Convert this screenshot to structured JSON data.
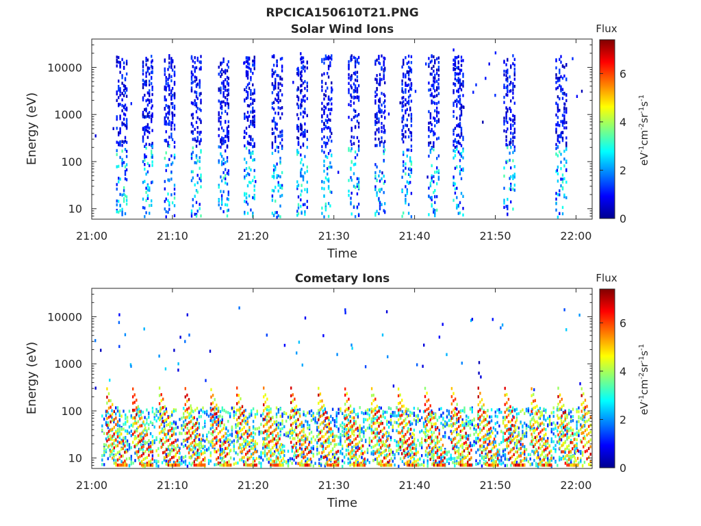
{
  "figure_title": "RPCICA150610T21.PNG",
  "chart_data": [
    {
      "type": "heatmap",
      "title": "Solar Wind Ions",
      "xlabel": "Time",
      "ylabel": "Energy (eV)",
      "x_ticks": [
        "21:00",
        "21:10",
        "21:20",
        "21:30",
        "21:40",
        "21:50",
        "22:00"
      ],
      "x_range_minutes": [
        0,
        62
      ],
      "y_scale": "log",
      "y_ticks": [
        {
          "value": 10,
          "label": "10"
        },
        {
          "value": 100,
          "label": "100"
        },
        {
          "value": 1000,
          "label": "1000"
        },
        {
          "value": 10000,
          "label": "10000"
        }
      ],
      "y_range": [
        6,
        40000
      ],
      "colorbar": {
        "title": "Flux",
        "label": "eV-1cm-2sr-1s-1",
        "ticks": [
          0,
          2,
          4,
          6
        ],
        "range": [
          0,
          7.4
        ],
        "colormap": "jet"
      },
      "pattern": "periodic vertical sweeps roughly every 3 minutes; sparse low-flux (0-2) counts up to ~20000 eV, higher flux (2-4) below ~100 eV",
      "sweep_times_minutes": [
        3.6,
        6.8,
        9.5,
        12.8,
        16.2,
        19.4,
        22.8,
        25.9,
        29.0,
        32.3,
        35.6,
        38.9,
        42.2,
        45.3,
        51.6,
        58.0
      ]
    },
    {
      "type": "heatmap",
      "title": "Cometary Ions",
      "xlabel": "Time",
      "ylabel": "Energy (eV)",
      "x_ticks": [
        "21:00",
        "21:10",
        "21:20",
        "21:30",
        "21:40",
        "21:50",
        "22:00"
      ],
      "x_range_minutes": [
        0,
        62
      ],
      "y_scale": "log",
      "y_ticks": [
        {
          "value": 10,
          "label": "10"
        },
        {
          "value": 100,
          "label": "100"
        },
        {
          "value": 1000,
          "label": "1000"
        },
        {
          "value": 10000,
          "label": "10000"
        }
      ],
      "y_range": [
        6,
        40000
      ],
      "colorbar": {
        "title": "Flux",
        "label": "eV-1cm-2sr-1s-1",
        "ticks": [
          0,
          2,
          4,
          6
        ],
        "range": [
          0,
          7.4
        ],
        "colormap": "jet"
      },
      "pattern": "dense high-flux (4-7) band between ~10 and ~300 eV with repeating V-shaped features every ~3 minutes; sparse counts up to ~15000 eV",
      "burst_times_minutes": [
        1.8,
        5.0,
        8.3,
        11.5,
        14.7,
        17.9,
        21.2,
        24.6,
        28.0,
        31.3,
        34.6,
        37.9,
        41.2,
        44.5,
        47.8,
        51.1,
        54.4,
        57.7,
        60.6
      ]
    }
  ]
}
